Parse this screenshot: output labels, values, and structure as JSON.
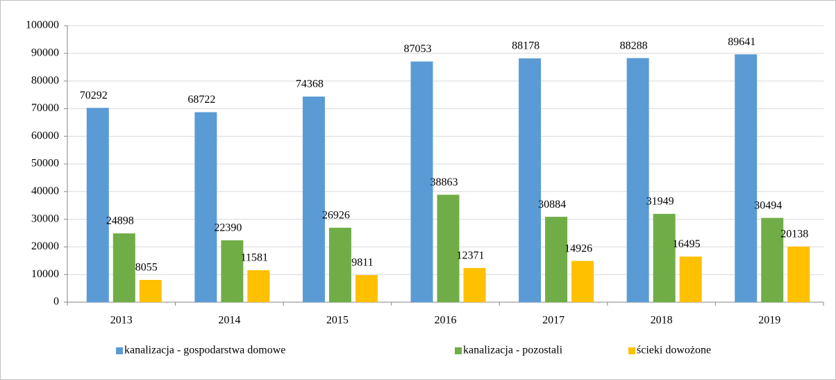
{
  "chart_data": {
    "type": "bar",
    "categories": [
      "2013",
      "2014",
      "2015",
      "2016",
      "2017",
      "2018",
      "2019"
    ],
    "series": [
      {
        "name": "kanalizacja - gospodarstwa domowe",
        "color": "#5b9bd5",
        "values": [
          70292,
          68722,
          74368,
          87053,
          88178,
          88288,
          89641
        ]
      },
      {
        "name": "kanalizacja - pozostali",
        "color": "#70ad47",
        "values": [
          24898,
          22390,
          26926,
          38863,
          30884,
          31949,
          30494
        ]
      },
      {
        "name": "ścieki dowożone",
        "color": "#ffc000",
        "values": [
          8055,
          11581,
          9811,
          12371,
          14926,
          16495,
          20138
        ]
      }
    ],
    "ylim": [
      0,
      100000
    ],
    "yticks": [
      0,
      10000,
      20000,
      30000,
      40000,
      50000,
      60000,
      70000,
      80000,
      90000,
      100000
    ],
    "grid": true,
    "legend": "bottom"
  }
}
